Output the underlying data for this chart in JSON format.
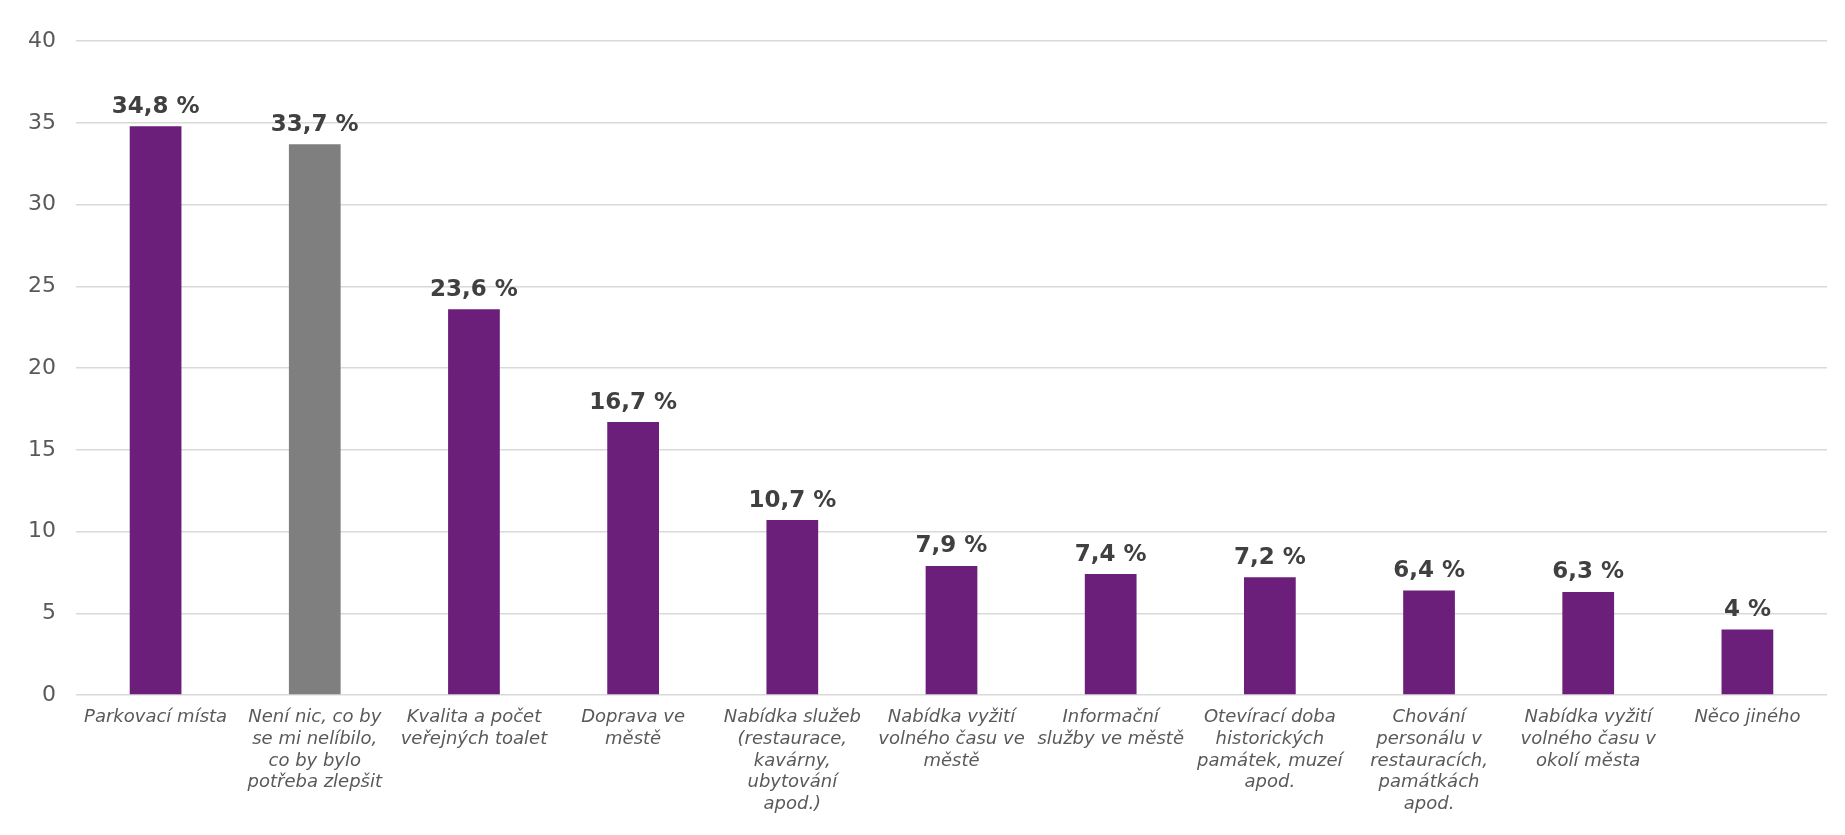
{
  "chart_data": {
    "type": "bar",
    "categories": [
      "Parkovací místa",
      "Není nic, co by se mi nelíbilo, co by bylo potřeba zlepšit",
      "Kvalita a počet veřejných toalet",
      "Doprava ve městě",
      "Nabídka služeb (restaurace, kavárny, ubytování apod.)",
      "Nabídka vyžití volného času ve městě",
      "Informační služby ve městě",
      "Otevírací doba historických památek, muzeí apod.",
      "Chování personálu v restauracích, památkách apod.",
      "Nabídka vyžití volného času v okolí města",
      "Něco jiného"
    ],
    "values": [
      34.8,
      33.7,
      23.6,
      16.7,
      10.7,
      7.9,
      7.4,
      7.2,
      6.4,
      6.3,
      4
    ],
    "colors": [
      "#6b1f7a",
      "#7f7f7f",
      "#6b1f7a",
      "#6b1f7a",
      "#6b1f7a",
      "#6b1f7a",
      "#6b1f7a",
      "#6b1f7a",
      "#6b1f7a",
      "#6b1f7a",
      "#6b1f7a"
    ],
    "value_labels": [
      "34,8 %",
      "33,7 %",
      "23,6 %",
      "16,7 %",
      "10,7 %",
      "7,9 %",
      "7,4 %",
      "7,2 %",
      "6,4 %",
      "6,3 %",
      "4 %"
    ],
    "ylim": [
      0,
      40
    ],
    "yticks": [
      0,
      5,
      10,
      15,
      20,
      25,
      30,
      35,
      40
    ],
    "grid": "y",
    "legend": false
  }
}
